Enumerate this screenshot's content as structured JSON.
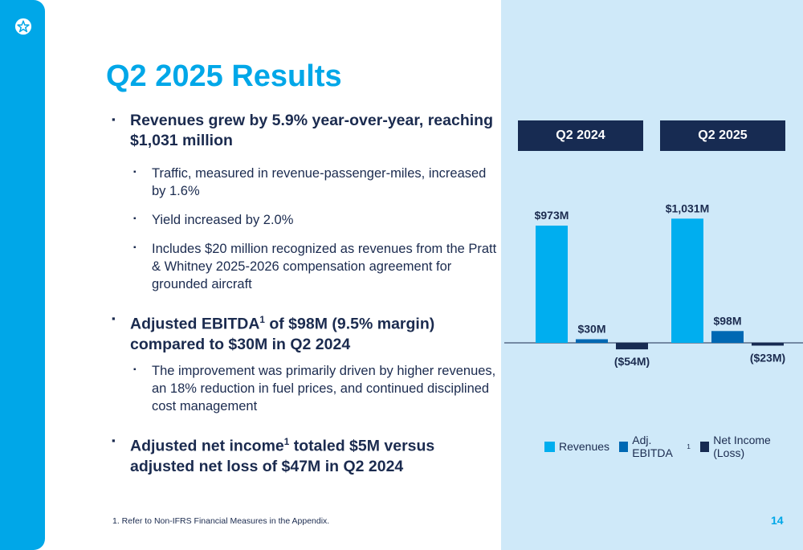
{
  "title": "Q2 2025 Results",
  "bullets": {
    "revenue": "Revenues grew by 5.9% year-over-year, reaching $1,031 million",
    "traffic": "Traffic, measured in revenue-passenger-miles, increased by 1.6%",
    "yield": "Yield increased by 2.0%",
    "pw": "Includes $20 million recognized as revenues from the Pratt & Whitney 2025-2026 compensation agreement for grounded aircraft",
    "ebitda_a": "Adjusted EBITDA",
    "ebitda_sup": "1",
    "ebitda_b": " of $98M (9.5% margin) compared to $30M in Q2 2024",
    "improvement": "The improvement was primarily driven by higher revenues, an 18% reduction in fuel prices, and continued disciplined cost management",
    "ni_a": "Adjusted net income",
    "ni_sup": "1",
    "ni_b": " totaled $5M versus adjusted net loss of $47M in Q2 2024",
    "marker": "▪"
  },
  "footnote": "1.    Refer to Non-IFRS Financial Measures in the Appendix.",
  "page_number": "14",
  "icons": {
    "logo": "star-icon"
  },
  "colors": {
    "accent": "#00a7e8",
    "navy": "#172b52",
    "panel": "#cfe9f9"
  },
  "chart_data": {
    "type": "bar",
    "categories": [
      "Q2 2024",
      "Q2 2025"
    ],
    "series": [
      {
        "name": "Revenues",
        "values": [
          973,
          1031
        ],
        "labels": [
          "$973M",
          "$1,031M"
        ],
        "color": "#00aeef"
      },
      {
        "name": "Adj. EBITDA",
        "name_sup": "1",
        "values": [
          30,
          98
        ],
        "labels": [
          "$30M",
          "$98M"
        ],
        "color": "#0068b3"
      },
      {
        "name": "Net Income (Loss)",
        "values": [
          -54,
          -23
        ],
        "labels": [
          "($54M)",
          "($23M)"
        ],
        "color": "#172b52"
      }
    ],
    "unit": "$M",
    "legend": "bottom",
    "grid": false
  }
}
